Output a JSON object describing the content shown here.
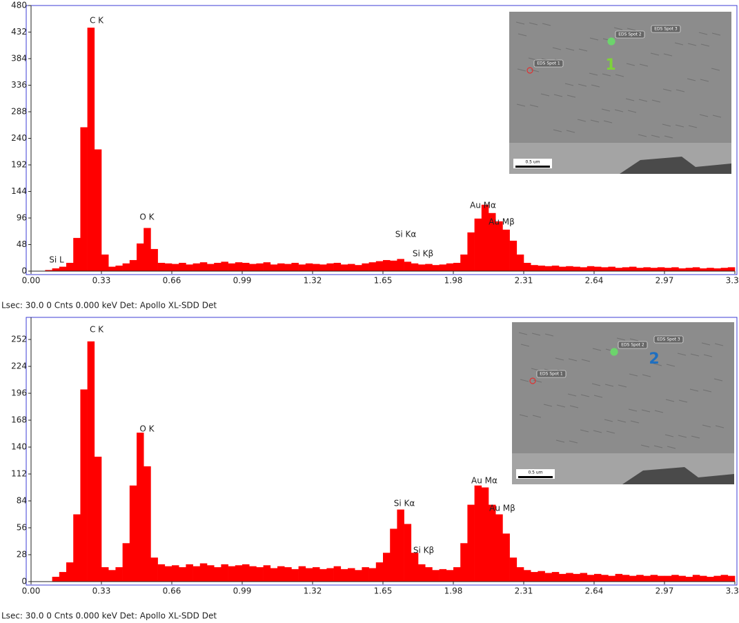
{
  "chart_data": [
    {
      "type": "histogram",
      "annotations": [
        "C  K",
        "O  K",
        "Si L",
        "Si Kα",
        "Si Kβ",
        "Au Mα",
        "Au Mβ"
      ],
      "bins": [
        0,
        0.033,
        0.066,
        0.099,
        0.132,
        0.165,
        0.198,
        0.231,
        0.264,
        0.297,
        0.33,
        0.363,
        0.396,
        0.429,
        0.462,
        0.495,
        0.528,
        0.561,
        0.594,
        0.627,
        0.66,
        0.693,
        0.726,
        0.759,
        0.792,
        0.825,
        0.858,
        0.891,
        0.924,
        0.957,
        0.99,
        1.023,
        1.056,
        1.089,
        1.122,
        1.155,
        1.188,
        1.221,
        1.254,
        1.287,
        1.32,
        1.353,
        1.386,
        1.419,
        1.452,
        1.485,
        1.518,
        1.551,
        1.584,
        1.617,
        1.65,
        1.683,
        1.716,
        1.749,
        1.782,
        1.815,
        1.848,
        1.881,
        1.914,
        1.947,
        1.98,
        2.013,
        2.046,
        2.079,
        2.112,
        2.145,
        2.178,
        2.211,
        2.244,
        2.277,
        2.31,
        2.343,
        2.376,
        2.409,
        2.442,
        2.475,
        2.508,
        2.541,
        2.574,
        2.607,
        2.64,
        2.673,
        2.706,
        2.739,
        2.772,
        2.805,
        2.838,
        2.871,
        2.904,
        2.937,
        2.97,
        3.003,
        3.036,
        3.069,
        3.102,
        3.135,
        3.168,
        3.201,
        3.234,
        3.267,
        3.3
      ],
      "values": [
        0,
        0,
        2,
        5,
        8,
        15,
        60,
        260,
        440,
        220,
        30,
        8,
        10,
        14,
        20,
        50,
        78,
        40,
        15,
        14,
        13,
        15,
        12,
        14,
        16,
        13,
        15,
        17,
        14,
        16,
        15,
        13,
        14,
        16,
        12,
        14,
        13,
        15,
        12,
        14,
        13,
        12,
        14,
        15,
        12,
        13,
        11,
        14,
        16,
        18,
        20,
        19,
        22,
        17,
        14,
        12,
        13,
        11,
        12,
        14,
        15,
        30,
        70,
        95,
        120,
        105,
        90,
        75,
        55,
        30,
        15,
        11,
        10,
        9,
        10,
        8,
        9,
        8,
        7,
        9,
        8,
        7,
        8,
        6,
        7,
        8,
        6,
        7,
        6,
        7,
        6,
        7,
        5,
        6,
        7,
        5,
        6,
        5,
        6,
        7
      ],
      "color": "#ff0000",
      "xlim": [
        0,
        3.3
      ],
      "xticks": [
        {
          "value": 0,
          "label": "0.00"
        },
        0.33,
        0.66,
        0.99,
        1.32,
        1.65,
        1.98,
        2.31,
        2.64,
        2.97,
        {
          "value": 3.3,
          "label": "3.30"
        }
      ],
      "ylim": [
        0,
        480
      ],
      "yticks": [
        0,
        48,
        96,
        144,
        192,
        240,
        288,
        336,
        384,
        432,
        480
      ],
      "inset": {
        "spot_labels": [
          "EDS Spot 1",
          "EDS Spot 2",
          "EDS Spot 3"
        ],
        "scale_label": "0.5 um",
        "marker": "1"
      },
      "footer": "Lsec: 30.0 0 Cnts  0.000 keV Det: Apollo XL-SDD Det"
    },
    {
      "type": "histogram",
      "annotations": [
        "C  K",
        "O  K",
        "Si Kα",
        "Si Kβ",
        "Au Mα",
        "Au Mβ"
      ],
      "bins": [
        0,
        0.033,
        0.066,
        0.099,
        0.132,
        0.165,
        0.198,
        0.231,
        0.264,
        0.297,
        0.33,
        0.363,
        0.396,
        0.429,
        0.462,
        0.495,
        0.528,
        0.561,
        0.594,
        0.627,
        0.66,
        0.693,
        0.726,
        0.759,
        0.792,
        0.825,
        0.858,
        0.891,
        0.924,
        0.957,
        0.99,
        1.023,
        1.056,
        1.089,
        1.122,
        1.155,
        1.188,
        1.221,
        1.254,
        1.287,
        1.32,
        1.353,
        1.386,
        1.419,
        1.452,
        1.485,
        1.518,
        1.551,
        1.584,
        1.617,
        1.65,
        1.683,
        1.716,
        1.749,
        1.782,
        1.815,
        1.848,
        1.881,
        1.914,
        1.947,
        1.98,
        2.013,
        2.046,
        2.079,
        2.112,
        2.145,
        2.178,
        2.211,
        2.244,
        2.277,
        2.31,
        2.343,
        2.376,
        2.409,
        2.442,
        2.475,
        2.508,
        2.541,
        2.574,
        2.607,
        2.64,
        2.673,
        2.706,
        2.739,
        2.772,
        2.805,
        2.838,
        2.871,
        2.904,
        2.937,
        2.97,
        3.003,
        3.036,
        3.069,
        3.102,
        3.135,
        3.168,
        3.201,
        3.234,
        3.267,
        3.3
      ],
      "values": [
        0,
        0,
        0,
        5,
        10,
        20,
        70,
        200,
        250,
        130,
        15,
        12,
        15,
        40,
        100,
        155,
        120,
        25,
        18,
        16,
        17,
        15,
        18,
        16,
        19,
        17,
        15,
        18,
        16,
        17,
        18,
        16,
        15,
        17,
        14,
        16,
        15,
        13,
        16,
        14,
        15,
        13,
        14,
        16,
        13,
        14,
        12,
        15,
        14,
        20,
        30,
        55,
        75,
        60,
        30,
        18,
        15,
        12,
        13,
        12,
        15,
        40,
        80,
        100,
        98,
        80,
        70,
        50,
        25,
        15,
        12,
        10,
        11,
        9,
        10,
        8,
        9,
        8,
        9,
        7,
        8,
        7,
        6,
        8,
        7,
        6,
        7,
        6,
        7,
        6,
        6,
        7,
        6,
        5,
        7,
        6,
        5,
        6,
        7,
        6
      ],
      "color": "#ff0000",
      "xlim": [
        0,
        3.3
      ],
      "xticks": [
        {
          "value": 0,
          "label": "0.00"
        },
        0.33,
        0.66,
        0.99,
        1.32,
        1.65,
        1.98,
        2.31,
        2.64,
        2.97,
        {
          "value": 3.3,
          "label": "3.30"
        }
      ],
      "ylim": [
        0,
        275
      ],
      "yticks": [
        0,
        28,
        56,
        84,
        112,
        140,
        168,
        196,
        224,
        252
      ],
      "inset": {
        "spot_labels": [
          "EDS Spot 1",
          "EDS Spot 2",
          "EDS Spot 3"
        ],
        "scale_label": "0.5 um",
        "marker": "2"
      },
      "footer": "Lsec: 30.0 0 Cnts  0.000 keV Det: Apollo XL-SDD Det"
    }
  ]
}
